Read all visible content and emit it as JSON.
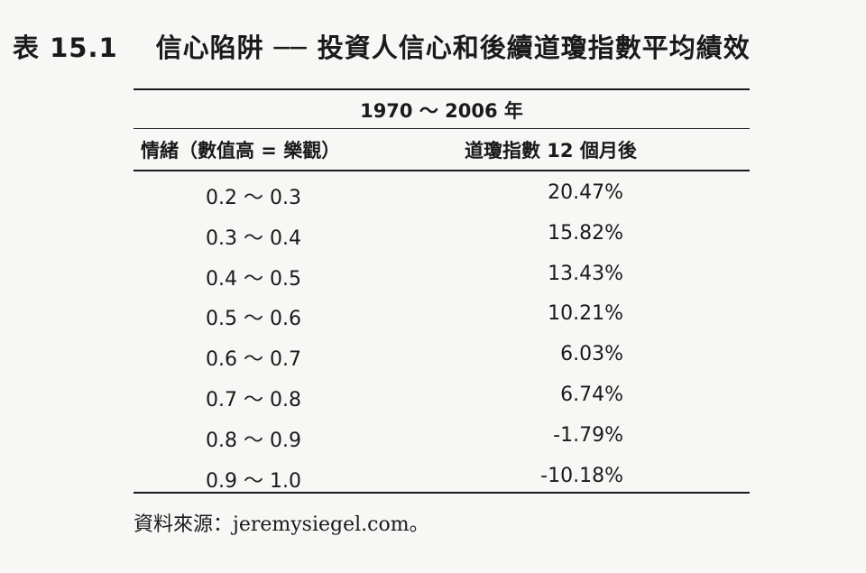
{
  "title": {
    "number": "表 15.1",
    "text": "信心陷阱 ── 投資人信心和後續道瓊指數平均績效"
  },
  "table": {
    "period": "1970 ～ 2006 年",
    "col_sentiment": "情緒（數值高 = 樂觀）",
    "col_return": "道瓊指數 12 個月後",
    "rows": [
      {
        "range": "0.2 ～ 0.3",
        "return": "20.47%"
      },
      {
        "range": "0.3 ～ 0.4",
        "return": "15.82%"
      },
      {
        "range": "0.4 ～ 0.5",
        "return": "13.43%"
      },
      {
        "range": "0.5 ～ 0.6",
        "return": "10.21%"
      },
      {
        "range": "0.6 ～ 0.7",
        "return": "6.03%"
      },
      {
        "range": "0.7 ～ 0.8",
        "return": "6.74%"
      },
      {
        "range": "0.8 ～ 0.9",
        "return": "-1.79%"
      },
      {
        "range": "0.9 ～ 1.0",
        "return": "-10.18%"
      }
    ]
  },
  "source": "資料來源：jeremysiegel.com。"
}
